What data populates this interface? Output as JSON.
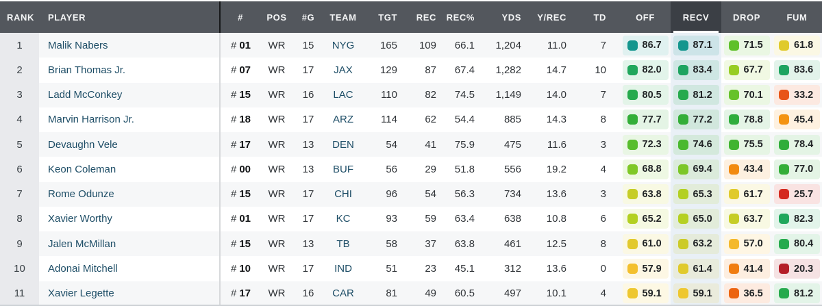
{
  "colors": {
    "header_bg": "#53575d",
    "header_selected_bg": "#3b3f45",
    "header_text": "#f3f4f5",
    "selected_underline": "#ffffff",
    "row_stripe": "#f6f7f8",
    "rank_column_bg": "#e9eaed",
    "selected_column_bg": "#e9f0f6",
    "link_text": "#1d4d66",
    "divider_header": "#17181a",
    "divider_body": "#d7d9db"
  },
  "table": {
    "selected_column": "RECV",
    "columns": [
      {
        "key": "rank",
        "label": "RANK"
      },
      {
        "key": "player",
        "label": "PLAYER"
      },
      {
        "key": "jersey",
        "label": "#",
        "prefix": "#"
      },
      {
        "key": "pos",
        "label": "POS"
      },
      {
        "key": "g",
        "label": "#G"
      },
      {
        "key": "team",
        "label": "TEAM"
      },
      {
        "key": "tgt",
        "label": "TGT"
      },
      {
        "key": "rec",
        "label": "REC"
      },
      {
        "key": "recpct",
        "label": "REC%"
      },
      {
        "key": "yds",
        "label": "YDS"
      },
      {
        "key": "yrec",
        "label": "Y/REC"
      },
      {
        "key": "td",
        "label": "TD"
      },
      {
        "key": "off",
        "label": "OFF",
        "type": "rating"
      },
      {
        "key": "recv",
        "label": "RECV",
        "type": "rating",
        "selected": true
      },
      {
        "key": "drop",
        "label": "DROP",
        "type": "rating"
      },
      {
        "key": "fum",
        "label": "FUM",
        "type": "rating"
      }
    ],
    "rows": [
      {
        "rank": "1",
        "player": "Malik Nabers",
        "jersey": "01",
        "pos": "WR",
        "g": "15",
        "team": "NYG",
        "tgt": "165",
        "rec": "109",
        "recpct": "66.1",
        "yds": "1,204",
        "yrec": "11.0",
        "td": "7",
        "off": {
          "value": "86.7",
          "color": "#14968e"
        },
        "recv": {
          "value": "87.1",
          "color": "#14968e"
        },
        "drop": {
          "value": "71.5",
          "color": "#5fc02b"
        },
        "fum": {
          "value": "61.8",
          "color": "#e0ca2c"
        }
      },
      {
        "rank": "2",
        "player": "Brian Thomas Jr.",
        "jersey": "07",
        "pos": "WR",
        "g": "17",
        "team": "JAX",
        "tgt": "129",
        "rec": "87",
        "recpct": "67.4",
        "yds": "1,282",
        "yrec": "14.7",
        "td": "10",
        "off": {
          "value": "82.0",
          "color": "#20a75c"
        },
        "recv": {
          "value": "83.4",
          "color": "#1da460"
        },
        "drop": {
          "value": "67.7",
          "color": "#97cd24"
        },
        "fum": {
          "value": "83.6",
          "color": "#1da460"
        }
      },
      {
        "rank": "3",
        "player": "Ladd McConkey",
        "jersey": "15",
        "pos": "WR",
        "g": "16",
        "team": "LAC",
        "tgt": "110",
        "rec": "82",
        "recpct": "74.5",
        "yds": "1,149",
        "yrec": "14.0",
        "td": "7",
        "off": {
          "value": "80.5",
          "color": "#26aa4d"
        },
        "recv": {
          "value": "81.2",
          "color": "#26aa4d"
        },
        "drop": {
          "value": "70.1",
          "color": "#66c22a"
        },
        "fum": {
          "value": "33.2",
          "color": "#e85417"
        }
      },
      {
        "rank": "4",
        "player": "Marvin Harrison Jr.",
        "jersey": "18",
        "pos": "WR",
        "g": "17",
        "team": "ARZ",
        "tgt": "114",
        "rec": "62",
        "recpct": "54.4",
        "yds": "885",
        "yrec": "14.3",
        "td": "8",
        "off": {
          "value": "77.7",
          "color": "#33ae38"
        },
        "recv": {
          "value": "77.2",
          "color": "#33ae38"
        },
        "drop": {
          "value": "78.8",
          "color": "#2fad3c"
        },
        "fum": {
          "value": "45.4",
          "color": "#f49311"
        }
      },
      {
        "rank": "5",
        "player": "Devaughn Vele",
        "jersey": "17",
        "pos": "WR",
        "g": "13",
        "team": "DEN",
        "tgt": "54",
        "rec": "41",
        "recpct": "75.9",
        "yds": "475",
        "yrec": "11.6",
        "td": "3",
        "off": {
          "value": "72.3",
          "color": "#57bd2c"
        },
        "recv": {
          "value": "74.6",
          "color": "#4ab92e"
        },
        "drop": {
          "value": "75.5",
          "color": "#40b430"
        },
        "fum": {
          "value": "78.4",
          "color": "#30ad3a"
        }
      },
      {
        "rank": "6",
        "player": "Keon Coleman",
        "jersey": "00",
        "pos": "WR",
        "g": "13",
        "team": "BUF",
        "tgt": "56",
        "rec": "29",
        "recpct": "51.8",
        "yds": "556",
        "yrec": "19.2",
        "td": "4",
        "off": {
          "value": "68.8",
          "color": "#7fc827"
        },
        "recv": {
          "value": "69.4",
          "color": "#7cc727"
        },
        "drop": {
          "value": "43.4",
          "color": "#f28a10"
        },
        "fum": {
          "value": "77.0",
          "color": "#33ae38"
        }
      },
      {
        "rank": "7",
        "player": "Rome Odunze",
        "jersey": "15",
        "pos": "WR",
        "g": "17",
        "team": "CHI",
        "tgt": "96",
        "rec": "54",
        "recpct": "56.3",
        "yds": "734",
        "yrec": "13.6",
        "td": "3",
        "off": {
          "value": "63.8",
          "color": "#c6cd26"
        },
        "recv": {
          "value": "65.3",
          "color": "#b3d022"
        },
        "drop": {
          "value": "61.7",
          "color": "#e0ca2c"
        },
        "fum": {
          "value": "25.7",
          "color": "#d42a20"
        }
      },
      {
        "rank": "8",
        "player": "Xavier Worthy",
        "jersey": "01",
        "pos": "WR",
        "g": "17",
        "team": "KC",
        "tgt": "93",
        "rec": "59",
        "recpct": "63.4",
        "yds": "638",
        "yrec": "10.8",
        "td": "6",
        "off": {
          "value": "65.2",
          "color": "#b3d022"
        },
        "recv": {
          "value": "65.0",
          "color": "#b5d022"
        },
        "drop": {
          "value": "63.7",
          "color": "#c6cd26"
        },
        "fum": {
          "value": "82.3",
          "color": "#20a75c"
        }
      },
      {
        "rank": "9",
        "player": "Jalen McMillan",
        "jersey": "15",
        "pos": "WR",
        "g": "13",
        "team": "TB",
        "tgt": "58",
        "rec": "37",
        "recpct": "63.8",
        "yds": "461",
        "yrec": "12.5",
        "td": "8",
        "off": {
          "value": "61.0",
          "color": "#e2c92d"
        },
        "recv": {
          "value": "63.2",
          "color": "#cccb28"
        },
        "drop": {
          "value": "57.0",
          "color": "#f4b92c"
        },
        "fum": {
          "value": "80.4",
          "color": "#26aa4d"
        }
      },
      {
        "rank": "10",
        "player": "Adonai Mitchell",
        "jersey": "10",
        "pos": "WR",
        "g": "17",
        "team": "IND",
        "tgt": "51",
        "rec": "23",
        "recpct": "45.1",
        "yds": "312",
        "yrec": "13.6",
        "td": "0",
        "off": {
          "value": "57.9",
          "color": "#f3c02e"
        },
        "recv": {
          "value": "61.4",
          "color": "#e0ca2c"
        },
        "drop": {
          "value": "41.4",
          "color": "#f07d11"
        },
        "fum": {
          "value": "20.3",
          "color": "#b41e28"
        }
      },
      {
        "rank": "11",
        "player": "Xavier Legette",
        "jersey": "17",
        "pos": "WR",
        "g": "16",
        "team": "CAR",
        "tgt": "81",
        "rec": "49",
        "recpct": "60.5",
        "yds": "497",
        "yrec": "10.1",
        "td": "4",
        "off": {
          "value": "59.1",
          "color": "#eec72f"
        },
        "recv": {
          "value": "59.1",
          "color": "#eec72f"
        },
        "drop": {
          "value": "36.5",
          "color": "#ec6410"
        },
        "fum": {
          "value": "81.2",
          "color": "#26aa4d"
        }
      }
    ]
  }
}
